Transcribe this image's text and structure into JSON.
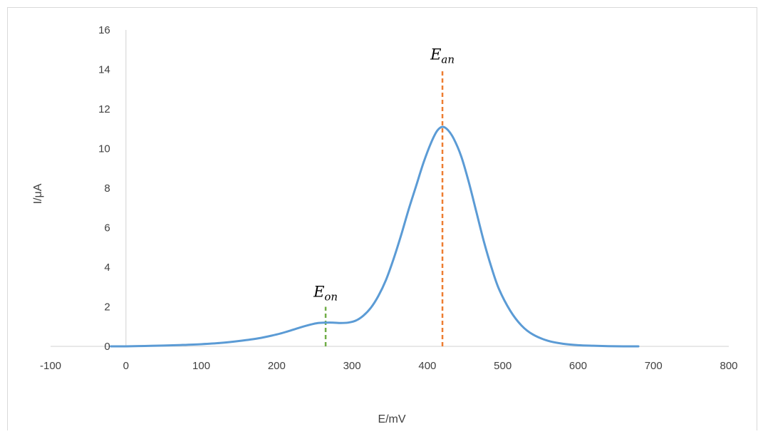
{
  "chart_data": {
    "type": "line",
    "xlabel": "E/mV",
    "ylabel": "I/μA",
    "xlim": [
      -100,
      800
    ],
    "ylim": [
      0,
      16
    ],
    "x_ticks": [
      -100,
      0,
      100,
      200,
      300,
      400,
      500,
      600,
      700,
      800
    ],
    "y_ticks": [
      0,
      2,
      4,
      6,
      8,
      10,
      12,
      14,
      16
    ],
    "x_tick_labels": [
      "-100",
      "0",
      "100",
      "200",
      "300",
      "400",
      "500",
      "600",
      "700",
      "800"
    ],
    "y_tick_labels": [
      "0",
      "2",
      "4",
      "6",
      "8",
      "10",
      "12",
      "14",
      "16"
    ],
    "grid": false,
    "legend": "none",
    "series": [
      {
        "color": "#5b9bd5",
        "x": [
          -20,
          0,
          25,
          50,
          75,
          100,
          125,
          150,
          175,
          200,
          215,
          230,
          245,
          255,
          265,
          275,
          285,
          295,
          305,
          315,
          325,
          335,
          345,
          355,
          365,
          375,
          385,
          395,
          405,
          413,
          420,
          427,
          435,
          445,
          455,
          465,
          475,
          485,
          495,
          510,
          525,
          540,
          560,
          580,
          600,
          620,
          640,
          660,
          680
        ],
        "y": [
          0.0,
          0.0,
          0.02,
          0.04,
          0.07,
          0.11,
          0.17,
          0.27,
          0.4,
          0.6,
          0.76,
          0.94,
          1.1,
          1.18,
          1.2,
          1.2,
          1.18,
          1.2,
          1.3,
          1.55,
          1.95,
          2.55,
          3.35,
          4.4,
          5.6,
          6.9,
          8.1,
          9.3,
          10.3,
          10.9,
          11.1,
          10.95,
          10.5,
          9.6,
          8.3,
          6.8,
          5.3,
          4.0,
          2.9,
          1.8,
          1.05,
          0.6,
          0.28,
          0.13,
          0.06,
          0.03,
          0.01,
          0.0,
          0.0
        ]
      }
    ],
    "annotations": [
      {
        "label": "E",
        "subscript": "on",
        "x": 265,
        "y_from": 0,
        "y_to": 2,
        "color": "#70ad47"
      },
      {
        "label": "E",
        "subscript": "an",
        "x": 420,
        "y_from": 0,
        "y_to": 14,
        "color": "#ed7d31"
      }
    ]
  }
}
